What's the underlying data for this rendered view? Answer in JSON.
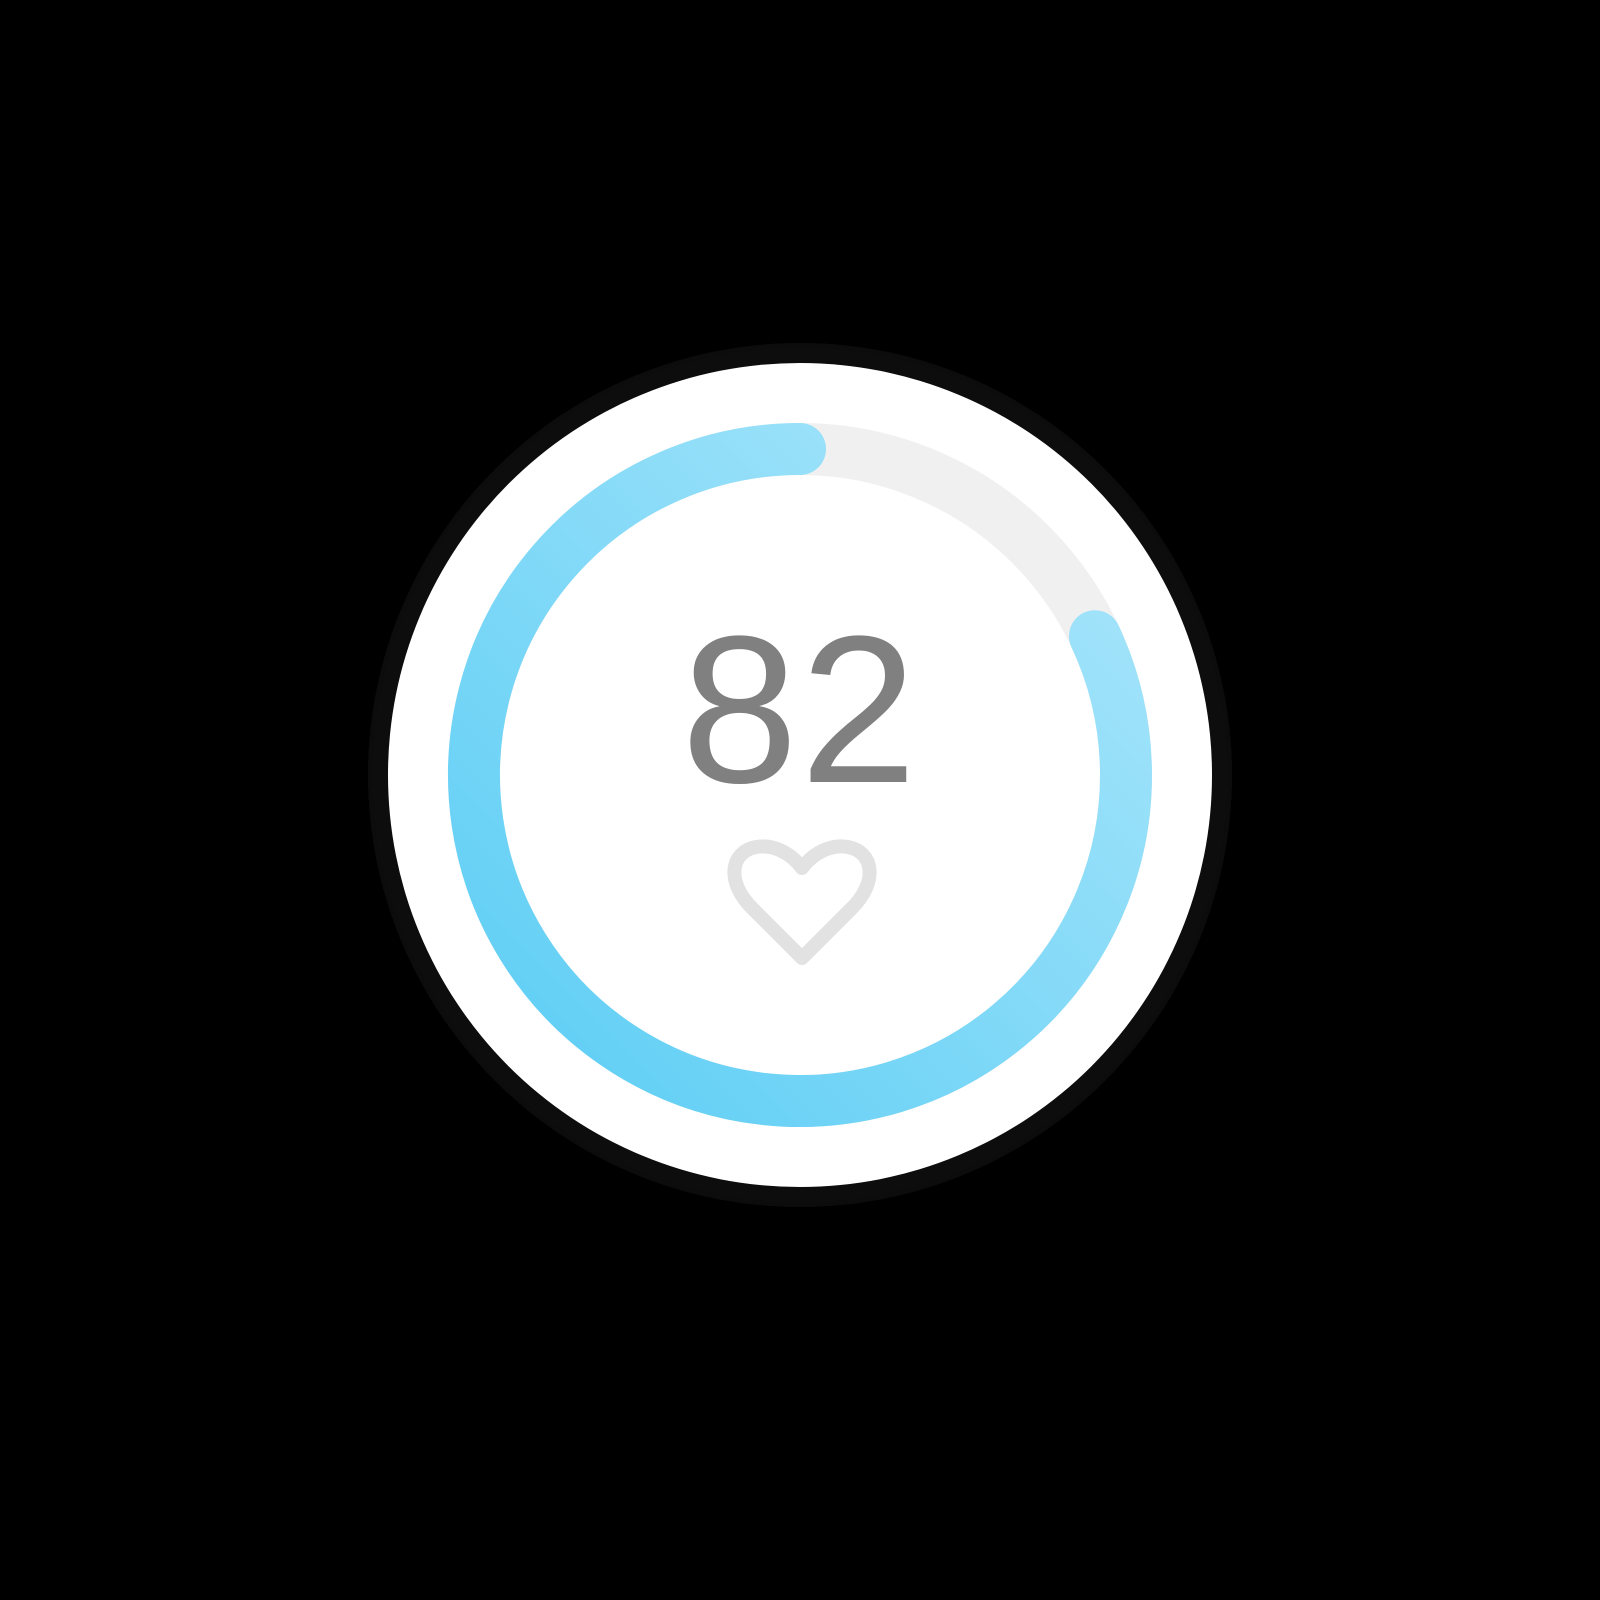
{
  "widget": {
    "value_text": "82",
    "progress_percent": 82,
    "icon": "heart-outline-icon",
    "colors": {
      "background": "#000000",
      "face": "#ffffff",
      "face_rim": "#111111",
      "track": "#f0f0f0",
      "arc_start": "#5bcdf4",
      "arc_end": "#abe6fb",
      "value_text": "#808080",
      "icon_stroke": "#e2e2e2"
    }
  }
}
